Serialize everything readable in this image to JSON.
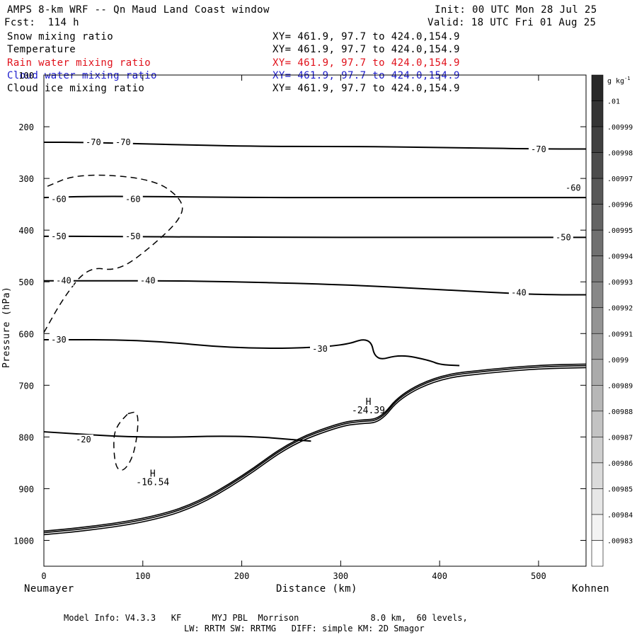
{
  "header": {
    "title": "AMPS 8-km WRF -- Qn Maud Land Coast window",
    "forecast": "Fcst:  114 h",
    "init": "Init: 00 UTC Mon 28 Jul 25",
    "valid": "Valid: 18 UTC Fri 01 Aug 25"
  },
  "fields": [
    {
      "name": "Snow mixing ratio",
      "xy": "XY= 461.9, 97.7 to 424.0,154.9",
      "color": "#000000"
    },
    {
      "name": "Temperature",
      "xy": "XY= 461.9, 97.7 to 424.0,154.9",
      "color": "#000000"
    },
    {
      "name": "Rain water mixing ratio",
      "xy": "XY= 461.9, 97.7 to 424.0,154.9",
      "color": "#e0101a"
    },
    {
      "name": "Cloud water mixing ratio",
      "xy": "XY= 461.9, 97.7 to 424.0,154.9",
      "color": "#1a1acc"
    },
    {
      "name": "Cloud ice mixing ratio",
      "xy": "XY= 461.9, 97.7 to 424.0,154.9",
      "color": "#000000"
    }
  ],
  "axes": {
    "ylabel": "Pressure (hPa)",
    "xlabel": "Distance (km)",
    "left_station": "Neumayer",
    "right_station": "Kohnen"
  },
  "footer": {
    "line1": "Model Info: V4.3.3   KF      MYJ PBL  Morrison              8.0 km,  60 levels,",
    "line2": "LW: RRTM SW: RRTMG   DIFF: simple KM: 2D Smagor"
  },
  "colorbar": {
    "unit": "g kg",
    "unit_exp": "-1",
    "labels": [
      ".01",
      ".00999",
      ".00998",
      ".00997",
      ".00996",
      ".00995",
      ".00994",
      ".00993",
      ".00992",
      ".00991",
      ".0099",
      ".00989",
      ".00988",
      ".00987",
      ".00986",
      ".00985",
      ".00984",
      ".00983"
    ]
  },
  "chart_data": {
    "type": "contour",
    "xlabel": "Distance (km)",
    "ylabel": "Pressure (hPa)",
    "xlim": [
      0,
      548
    ],
    "ylim": [
      1050,
      100
    ],
    "y_reversed": true,
    "x_ticks": [
      0,
      100,
      200,
      300,
      400,
      500
    ],
    "y_ticks": [
      100,
      200,
      300,
      400,
      500,
      600,
      700,
      800,
      900,
      1000
    ],
    "temperature_contours": [
      {
        "level": -70,
        "points": [
          [
            0,
            230
          ],
          [
            40,
            230
          ],
          [
            200,
            238
          ],
          [
            300,
            238
          ],
          [
            400,
            240
          ],
          [
            500,
            243
          ],
          [
            548,
            243
          ]
        ],
        "labels": [
          [
            50,
            230
          ],
          [
            80,
            230
          ],
          [
            500,
            244
          ]
        ]
      },
      {
        "level": -60,
        "points": [
          [
            0,
            337
          ],
          [
            60,
            334
          ],
          [
            200,
            337
          ],
          [
            400,
            337
          ],
          [
            548,
            337
          ]
        ],
        "labels": [
          [
            15,
            340
          ],
          [
            90,
            340
          ],
          [
            535,
            318
          ]
        ]
      },
      {
        "level": -50,
        "points": [
          [
            0,
            412
          ],
          [
            60,
            412
          ],
          [
            200,
            414
          ],
          [
            400,
            414
          ],
          [
            548,
            414
          ]
        ],
        "labels": [
          [
            15,
            412
          ],
          [
            90,
            412
          ],
          [
            525,
            414
          ]
        ]
      },
      {
        "level": -40,
        "points": [
          [
            0,
            498
          ],
          [
            60,
            498
          ],
          [
            150,
            498
          ],
          [
            300,
            505
          ],
          [
            400,
            515
          ],
          [
            500,
            525
          ],
          [
            548,
            525
          ]
        ],
        "labels": [
          [
            20,
            498
          ],
          [
            105,
            498
          ],
          [
            480,
            521
          ]
        ]
      },
      {
        "level": -30,
        "points": [
          [
            0,
            612
          ],
          [
            100,
            612
          ],
          [
            200,
            630
          ],
          [
            300,
            626
          ],
          [
            330,
            605
          ],
          [
            335,
            654
          ],
          [
            360,
            640
          ],
          [
            390,
            652
          ],
          [
            400,
            660
          ],
          [
            420,
            662
          ]
        ],
        "labels": [
          [
            15,
            612
          ],
          [
            279,
            630
          ]
        ]
      },
      {
        "level": -20,
        "points": [
          [
            0,
            790
          ],
          [
            100,
            802
          ],
          [
            200,
            797
          ],
          [
            270,
            808
          ]
        ],
        "labels": [
          [
            40,
            805
          ]
        ]
      }
    ],
    "dashed_contours": [
      {
        "points": [
          [
            0,
            598
          ],
          [
            20,
            530
          ],
          [
            45,
            470
          ],
          [
            75,
            480
          ],
          [
            110,
            430
          ],
          [
            140,
            375
          ],
          [
            140,
            340
          ],
          [
            110,
            300
          ],
          [
            35,
            290
          ],
          [
            0,
            318
          ]
        ]
      },
      {
        "points": [
          [
            85,
            755
          ],
          [
            95,
            750
          ],
          [
            95,
            790
          ],
          [
            90,
            840
          ],
          [
            80,
            868
          ],
          [
            72,
            858
          ],
          [
            70,
            800
          ],
          [
            75,
            775
          ],
          [
            85,
            755
          ]
        ]
      }
    ],
    "terrain": [
      [
        0,
        985
      ],
      [
        40,
        978
      ],
      [
        100,
        962
      ],
      [
        150,
        935
      ],
      [
        200,
        880
      ],
      [
        250,
        810
      ],
      [
        300,
        775
      ],
      [
        320,
        770
      ],
      [
        340,
        768
      ],
      [
        360,
        720
      ],
      [
        400,
        683
      ],
      [
        450,
        672
      ],
      [
        500,
        664
      ],
      [
        548,
        662
      ]
    ],
    "annotations": [
      {
        "text": "H",
        "x": 110,
        "y": 877
      },
      {
        "text": "-16.54",
        "x": 110,
        "y": 893
      },
      {
        "text": "H",
        "x": 328,
        "y": 738
      },
      {
        "text": "-24.39",
        "x": 328,
        "y": 754
      }
    ]
  }
}
